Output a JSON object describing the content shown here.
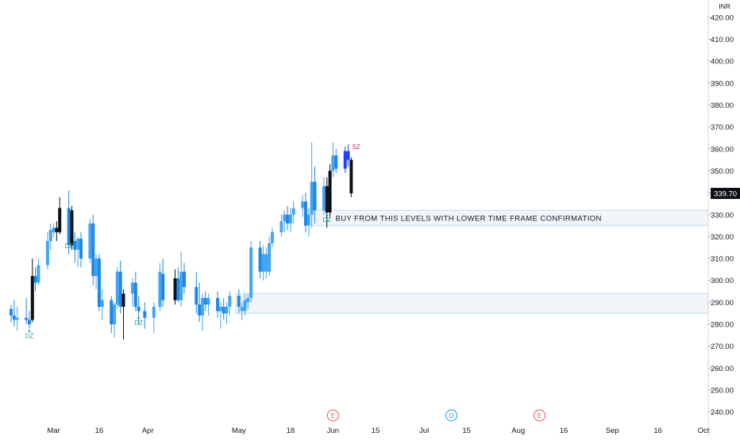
{
  "chart_data": {
    "type": "candlestick",
    "currency": "INR",
    "y_ticks": [
      240,
      250,
      260,
      270,
      280,
      290,
      300,
      310,
      320,
      330,
      340,
      350,
      360,
      370,
      380,
      390,
      400,
      410,
      420
    ],
    "ylim": [
      237,
      425
    ],
    "x_ticks": [
      {
        "label": "Mar",
        "date": "2023-03-01"
      },
      {
        "label": "16",
        "date": "2023-03-16"
      },
      {
        "label": "Apr",
        "date": "2023-04-01"
      },
      {
        "label": "May",
        "date": "2023-05-01"
      },
      {
        "label": "18",
        "date": "2023-05-18"
      },
      {
        "label": "Jun",
        "date": "2023-06-01"
      },
      {
        "label": "15",
        "date": "2023-06-15"
      },
      {
        "label": "Jul",
        "date": "2023-07-01"
      },
      {
        "label": "15",
        "date": "2023-07-15"
      },
      {
        "label": "Aug",
        "date": "2023-08-01"
      },
      {
        "label": "16",
        "date": "2023-08-16"
      },
      {
        "label": "Sep",
        "date": "2023-09-01"
      },
      {
        "label": "16",
        "date": "2023-09-16"
      },
      {
        "label": "Oct",
        "date": "2023-10-01"
      }
    ],
    "xlim": [
      "2023-02-15",
      "2023-10-01"
    ],
    "last_price": {
      "label": "339.70",
      "value": 339.7
    },
    "candles": [
      {
        "d": "2023-02-15",
        "o": 287,
        "h": 289,
        "l": 281,
        "c": 284,
        "dir": "down"
      },
      {
        "d": "2023-02-16",
        "o": 284,
        "h": 291,
        "l": 279,
        "c": 282,
        "dir": "down"
      },
      {
        "d": "2023-02-17",
        "o": 282,
        "h": 288,
        "l": 277,
        "c": 283,
        "dir": "up"
      },
      {
        "d": "2023-02-20",
        "o": 283,
        "h": 292,
        "l": 280,
        "c": 282,
        "dir": "down"
      },
      {
        "d": "2023-02-21",
        "o": 282,
        "h": 286,
        "l": 278,
        "c": 280,
        "dir": "down"
      },
      {
        "d": "2023-02-22",
        "o": 282,
        "h": 310,
        "l": 281,
        "c": 302,
        "dir": "dark"
      },
      {
        "d": "2023-02-23",
        "o": 302,
        "h": 306,
        "l": 295,
        "c": 299,
        "dir": "down"
      },
      {
        "d": "2023-02-24",
        "o": 299,
        "h": 310,
        "l": 298,
        "c": 307,
        "dir": "up"
      },
      {
        "d": "2023-02-27",
        "o": 307,
        "h": 322,
        "l": 305,
        "c": 318,
        "dir": "up"
      },
      {
        "d": "2023-02-28",
        "o": 318,
        "h": 326,
        "l": 314,
        "c": 323,
        "dir": "up"
      },
      {
        "d": "2023-03-01",
        "o": 322,
        "h": 326,
        "l": 320,
        "c": 324,
        "dir": "up"
      },
      {
        "d": "2023-03-02",
        "o": 324,
        "h": 327,
        "l": 318,
        "c": 322,
        "dir": "dark"
      },
      {
        "d": "2023-03-03",
        "o": 322,
        "h": 338,
        "l": 321,
        "c": 333,
        "dir": "dark"
      },
      {
        "d": "2023-03-06",
        "o": 333,
        "h": 341,
        "l": 312,
        "c": 316,
        "dir": "down"
      },
      {
        "d": "2023-03-07",
        "o": 316,
        "h": 334,
        "l": 314,
        "c": 332,
        "dir": "dark"
      },
      {
        "d": "2023-03-08",
        "o": 318,
        "h": 322,
        "l": 308,
        "c": 314,
        "dir": "down"
      },
      {
        "d": "2023-03-09",
        "o": 314,
        "h": 320,
        "l": 306,
        "c": 319,
        "dir": "up"
      },
      {
        "d": "2023-03-10",
        "o": 319,
        "h": 322,
        "l": 306,
        "c": 310,
        "dir": "down"
      },
      {
        "d": "2023-03-13",
        "o": 310,
        "h": 328,
        "l": 308,
        "c": 326,
        "dir": "up"
      },
      {
        "d": "2023-03-14",
        "o": 326,
        "h": 330,
        "l": 298,
        "c": 302,
        "dir": "down"
      },
      {
        "d": "2023-03-15",
        "o": 302,
        "h": 312,
        "l": 296,
        "c": 310,
        "dir": "up"
      },
      {
        "d": "2023-03-16",
        "o": 310,
        "h": 312,
        "l": 286,
        "c": 288,
        "dir": "down"
      },
      {
        "d": "2023-03-17",
        "o": 288,
        "h": 296,
        "l": 282,
        "c": 291,
        "dir": "up"
      },
      {
        "d": "2023-03-20",
        "o": 291,
        "h": 293,
        "l": 276,
        "c": 280,
        "dir": "down"
      },
      {
        "d": "2023-03-21",
        "o": 280,
        "h": 290,
        "l": 274,
        "c": 289,
        "dir": "up"
      },
      {
        "d": "2023-03-22",
        "o": 289,
        "h": 306,
        "l": 287,
        "c": 304,
        "dir": "up"
      },
      {
        "d": "2023-03-23",
        "o": 304,
        "h": 309,
        "l": 285,
        "c": 288,
        "dir": "down"
      },
      {
        "d": "2023-03-24",
        "o": 288,
        "h": 296,
        "l": 273,
        "c": 294,
        "dir": "dark"
      },
      {
        "d": "2023-03-27",
        "o": 294,
        "h": 301,
        "l": 288,
        "c": 299,
        "dir": "up"
      },
      {
        "d": "2023-03-28",
        "o": 299,
        "h": 304,
        "l": 286,
        "c": 288,
        "dir": "down"
      },
      {
        "d": "2023-03-29",
        "o": 288,
        "h": 293,
        "l": 280,
        "c": 286,
        "dir": "down"
      },
      {
        "d": "2023-03-31",
        "o": 286,
        "h": 290,
        "l": 278,
        "c": 283,
        "dir": "down"
      },
      {
        "d": "2023-04-03",
        "o": 283,
        "h": 290,
        "l": 276,
        "c": 288,
        "dir": "up"
      },
      {
        "d": "2023-04-05",
        "o": 288,
        "h": 308,
        "l": 286,
        "c": 304,
        "dir": "up"
      },
      {
        "d": "2023-04-06",
        "o": 303,
        "h": 310,
        "l": 288,
        "c": 291,
        "dir": "down"
      },
      {
        "d": "2023-04-10",
        "o": 291,
        "h": 305,
        "l": 289,
        "c": 301,
        "dir": "dark"
      },
      {
        "d": "2023-04-11",
        "o": 301,
        "h": 306,
        "l": 290,
        "c": 291,
        "dir": "down"
      },
      {
        "d": "2023-04-12",
        "o": 291,
        "h": 313,
        "l": 288,
        "c": 304,
        "dir": "up"
      },
      {
        "d": "2023-04-13",
        "o": 304,
        "h": 308,
        "l": 294,
        "c": 297,
        "dir": "down"
      },
      {
        "d": "2023-04-17",
        "o": 297,
        "h": 304,
        "l": 285,
        "c": 289,
        "dir": "down"
      },
      {
        "d": "2023-04-18",
        "o": 289,
        "h": 299,
        "l": 281,
        "c": 284,
        "dir": "down"
      },
      {
        "d": "2023-04-19",
        "o": 284,
        "h": 294,
        "l": 277,
        "c": 292,
        "dir": "up"
      },
      {
        "d": "2023-04-20",
        "o": 292,
        "h": 295,
        "l": 286,
        "c": 289,
        "dir": "down"
      },
      {
        "d": "2023-04-21",
        "o": 289,
        "h": 294,
        "l": 284,
        "c": 292,
        "dir": "up"
      },
      {
        "d": "2023-04-24",
        "o": 292,
        "h": 295,
        "l": 283,
        "c": 286,
        "dir": "down"
      },
      {
        "d": "2023-04-25",
        "o": 286,
        "h": 290,
        "l": 278,
        "c": 288,
        "dir": "up"
      },
      {
        "d": "2023-04-26",
        "o": 288,
        "h": 292,
        "l": 282,
        "c": 285,
        "dir": "down"
      },
      {
        "d": "2023-04-27",
        "o": 285,
        "h": 290,
        "l": 280,
        "c": 288,
        "dir": "up"
      },
      {
        "d": "2023-04-28",
        "o": 288,
        "h": 295,
        "l": 284,
        "c": 293,
        "dir": "up"
      },
      {
        "d": "2023-05-01",
        "o": 293,
        "h": 296,
        "l": 285,
        "c": 288,
        "dir": "down"
      },
      {
        "d": "2023-05-02",
        "o": 288,
        "h": 290,
        "l": 282,
        "c": 286,
        "dir": "up"
      },
      {
        "d": "2023-05-03",
        "o": 286,
        "h": 294,
        "l": 284,
        "c": 291,
        "dir": "up"
      },
      {
        "d": "2023-05-04",
        "o": 290,
        "h": 294,
        "l": 287,
        "c": 292,
        "dir": "up"
      },
      {
        "d": "2023-05-05",
        "o": 292,
        "h": 318,
        "l": 290,
        "c": 315,
        "dir": "up"
      },
      {
        "d": "2023-05-08",
        "o": 315,
        "h": 318,
        "l": 301,
        "c": 304,
        "dir": "down"
      },
      {
        "d": "2023-05-09",
        "o": 304,
        "h": 316,
        "l": 300,
        "c": 312,
        "dir": "up"
      },
      {
        "d": "2023-05-10",
        "o": 312,
        "h": 315,
        "l": 301,
        "c": 304,
        "dir": "up"
      },
      {
        "d": "2023-05-11",
        "o": 304,
        "h": 320,
        "l": 302,
        "c": 317,
        "dir": "up"
      },
      {
        "d": "2023-05-12",
        "o": 317,
        "h": 324,
        "l": 315,
        "c": 322,
        "dir": "up"
      },
      {
        "d": "2023-05-15",
        "o": 322,
        "h": 330,
        "l": 320,
        "c": 327,
        "dir": "up"
      },
      {
        "d": "2023-05-16",
        "o": 327,
        "h": 332,
        "l": 322,
        "c": 330,
        "dir": "up"
      },
      {
        "d": "2023-05-17",
        "o": 330,
        "h": 334,
        "l": 323,
        "c": 326,
        "dir": "down"
      },
      {
        "d": "2023-05-18",
        "o": 326,
        "h": 333,
        "l": 322,
        "c": 330,
        "dir": "up"
      },
      {
        "d": "2023-05-19",
        "o": 330,
        "h": 336,
        "l": 326,
        "c": 333,
        "dir": "up"
      },
      {
        "d": "2023-05-22",
        "o": 333,
        "h": 339,
        "l": 329,
        "c": 336,
        "dir": "up"
      },
      {
        "d": "2023-05-23",
        "o": 336,
        "h": 340,
        "l": 322,
        "c": 325,
        "dir": "down"
      },
      {
        "d": "2023-05-24",
        "o": 325,
        "h": 333,
        "l": 320,
        "c": 330,
        "dir": "up"
      },
      {
        "d": "2023-05-25",
        "o": 330,
        "h": 363,
        "l": 324,
        "c": 345,
        "dir": "up"
      },
      {
        "d": "2023-05-26",
        "o": 345,
        "h": 352,
        "l": 326,
        "c": 332,
        "dir": "down"
      },
      {
        "d": "2023-05-29",
        "o": 332,
        "h": 347,
        "l": 330,
        "c": 343,
        "dir": "up"
      },
      {
        "d": "2023-05-30",
        "o": 343,
        "h": 347,
        "l": 324,
        "c": 331,
        "dir": "dark"
      },
      {
        "d": "2023-05-31",
        "o": 331,
        "h": 353,
        "l": 329,
        "c": 350,
        "dir": "dark"
      },
      {
        "d": "2023-06-01",
        "o": 350,
        "h": 363,
        "l": 347,
        "c": 357,
        "dir": "up"
      },
      {
        "d": "2023-06-02",
        "o": 357,
        "h": 360,
        "l": 349,
        "c": 351,
        "dir": "down"
      },
      {
        "d": "2023-06-05",
        "o": 351,
        "h": 361,
        "l": 349,
        "c": 359,
        "dir": "blue"
      },
      {
        "d": "2023-06-06",
        "o": 359,
        "h": 362,
        "l": 352,
        "c": 355,
        "dir": "blue"
      },
      {
        "d": "2023-06-07",
        "o": 355,
        "h": 356,
        "l": 338,
        "c": 339.7,
        "dir": "dark"
      }
    ],
    "zones": [
      {
        "type": "demand",
        "from": 325,
        "to": 332,
        "start": "2023-05-26",
        "label": "BUY FROM THIS LEVELS WITH LOWER TIME FRAME CONFIRMATION"
      },
      {
        "type": "demand",
        "from": 285,
        "to": 294,
        "start": "2023-05-01",
        "label": ""
      }
    ],
    "markers": [
      {
        "text": "DZ",
        "d": "2023-02-21",
        "price": 278,
        "pos": "below",
        "color": "#26a69a"
      },
      {
        "text": "DZ",
        "d": "2023-03-06",
        "price": 319,
        "pos": "below",
        "color": "#26a69a"
      },
      {
        "text": "DZ",
        "d": "2023-03-29",
        "price": 284,
        "pos": "below",
        "color": "#26a69a"
      },
      {
        "text": "DZ",
        "d": "2023-05-30",
        "price": 331,
        "pos": "below",
        "color": "#26a69a"
      },
      {
        "text": "SZ",
        "d": "2023-06-06",
        "price": 361,
        "pos": "right",
        "color": "#e91e63"
      }
    ],
    "events": [
      {
        "text": "E",
        "d": "2023-06-01",
        "color": "#ef5350"
      },
      {
        "text": "D",
        "d": "2023-07-10",
        "color": "#2196f3"
      },
      {
        "text": "E",
        "d": "2023-08-08",
        "color": "#ef5350"
      }
    ],
    "colors": {
      "up": "#42a5f5",
      "down": "#1e88e5",
      "dark": "#0d1117",
      "blue": "#1e40ff",
      "zone_fill": "#f2f5fa",
      "zone_border": "#c6dcf0",
      "axis_text": "#131722",
      "grid": "#e0e3eb"
    }
  }
}
